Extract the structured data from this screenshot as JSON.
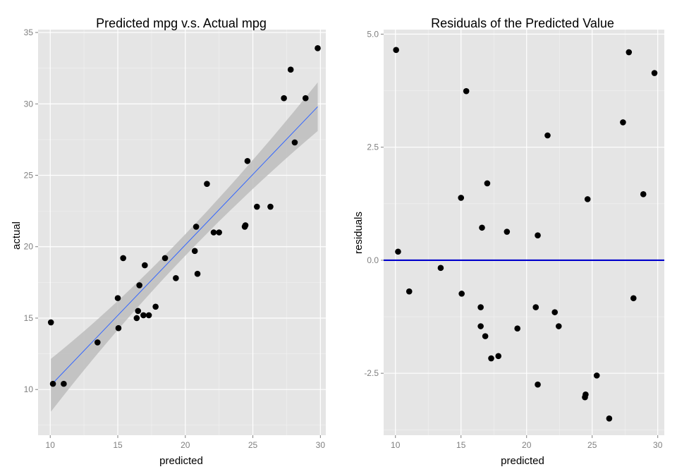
{
  "colors": {
    "panel_bg": "#e5e5e5",
    "grid_major": "#ffffff",
    "grid_minor": "#f2f2f2",
    "point": "#000000",
    "fit_line": "#3366ff",
    "ribbon": "#bdbdbd",
    "zero_line": "#0000cc"
  },
  "chart_data": [
    {
      "type": "scatter",
      "title": "Predicted mpg v.s. Actual mpg",
      "xlabel": "predicted",
      "ylabel": "actual",
      "xlim": [
        9.1,
        30.4
      ],
      "ylim": [
        6.8,
        35.2
      ],
      "xticks": [
        10,
        15,
        20,
        25,
        30
      ],
      "yticks": [
        10,
        15,
        20,
        25,
        30,
        35
      ],
      "grid": true,
      "smooth": {
        "method": "lm",
        "x_range": [
          10.05,
          29.8
        ],
        "y_range": [
          10.3,
          29.8
        ],
        "band_low": [
          8.3,
          28.1
        ],
        "band_high": [
          12.0,
          31.5
        ]
      },
      "points": [
        [
          10.05,
          14.7
        ],
        [
          10.2,
          10.4
        ],
        [
          11.0,
          10.4
        ],
        [
          13.5,
          13.3
        ],
        [
          15.0,
          16.4
        ],
        [
          15.05,
          14.3
        ],
        [
          15.4,
          19.2
        ],
        [
          16.4,
          15.0
        ],
        [
          16.5,
          15.5
        ],
        [
          16.6,
          17.3
        ],
        [
          16.9,
          15.2
        ],
        [
          17.0,
          18.7
        ],
        [
          17.3,
          15.2
        ],
        [
          17.8,
          15.8
        ],
        [
          18.5,
          19.2
        ],
        [
          19.3,
          17.8
        ],
        [
          20.7,
          19.7
        ],
        [
          20.8,
          21.4
        ],
        [
          20.9,
          18.1
        ],
        [
          21.6,
          24.4
        ],
        [
          22.1,
          21.0
        ],
        [
          22.5,
          21.0
        ],
        [
          24.4,
          21.4
        ],
        [
          24.45,
          21.5
        ],
        [
          24.6,
          26.0
        ],
        [
          25.3,
          22.8
        ],
        [
          26.3,
          22.8
        ],
        [
          27.3,
          30.4
        ],
        [
          27.8,
          32.4
        ],
        [
          28.1,
          27.3
        ],
        [
          28.9,
          30.4
        ],
        [
          29.8,
          33.9
        ]
      ]
    },
    {
      "type": "scatter",
      "title": "Residuals of the Predicted Value",
      "xlabel": "predicted",
      "ylabel": "residuals",
      "xlim": [
        9.1,
        30.5
      ],
      "ylim": [
        -3.87,
        5.1
      ],
      "xticks": [
        10,
        15,
        20,
        25,
        30
      ],
      "yticks": [
        -2.5,
        0.0,
        2.5,
        5.0
      ],
      "ytick_labels": [
        "-2.5",
        "0.0",
        "2.5",
        "5.0"
      ],
      "grid": true,
      "hline": 0,
      "points": [
        [
          10.05,
          4.65
        ],
        [
          10.2,
          0.19
        ],
        [
          11.05,
          -0.69
        ],
        [
          13.45,
          -0.17
        ],
        [
          15.0,
          1.38
        ],
        [
          15.05,
          -0.74
        ],
        [
          15.4,
          3.74
        ],
        [
          16.5,
          -1.04
        ],
        [
          16.5,
          -1.46
        ],
        [
          16.6,
          0.72
        ],
        [
          16.85,
          -1.68
        ],
        [
          17.0,
          1.7
        ],
        [
          17.3,
          -2.17
        ],
        [
          17.85,
          -2.12
        ],
        [
          18.5,
          0.63
        ],
        [
          19.3,
          -1.51
        ],
        [
          20.7,
          -1.04
        ],
        [
          20.85,
          0.55
        ],
        [
          20.85,
          -2.75
        ],
        [
          21.6,
          2.76
        ],
        [
          22.15,
          -1.15
        ],
        [
          22.45,
          -1.46
        ],
        [
          24.45,
          -3.03
        ],
        [
          24.5,
          -2.97
        ],
        [
          24.65,
          1.35
        ],
        [
          25.35,
          -2.55
        ],
        [
          26.3,
          -3.5
        ],
        [
          27.35,
          3.05
        ],
        [
          27.8,
          4.6
        ],
        [
          28.15,
          -0.84
        ],
        [
          28.9,
          1.46
        ],
        [
          29.75,
          4.14
        ]
      ]
    }
  ]
}
